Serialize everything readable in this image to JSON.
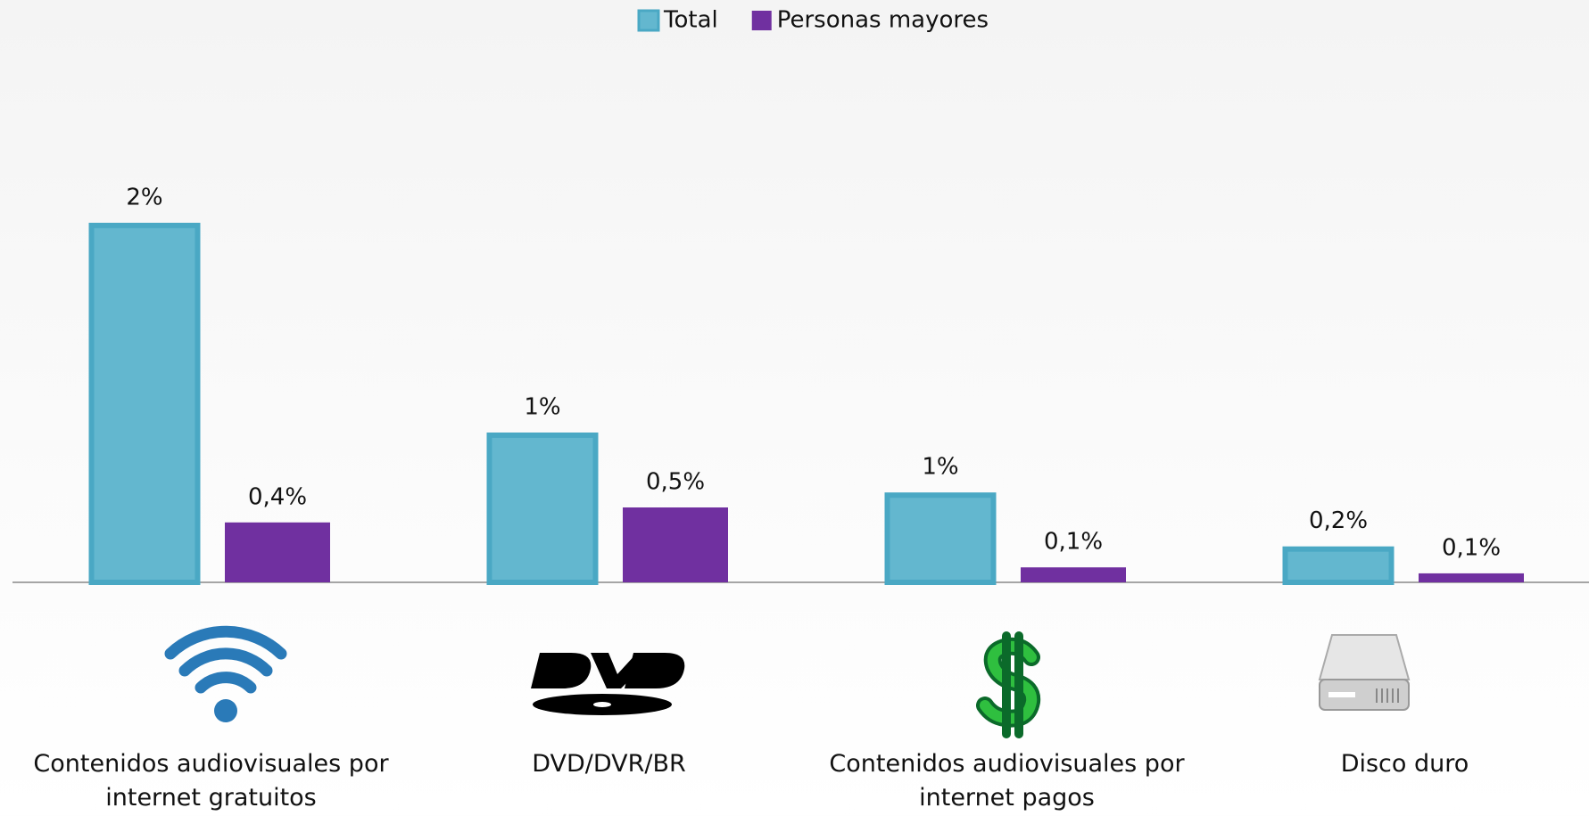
{
  "chart_data": {
    "type": "bar",
    "categories": [
      "Contenidos audiovisuales por internet gratuitos",
      "DVD/DVR/BR",
      "Contenidos audiovisuales por internet pagos",
      "Disco duro"
    ],
    "series": [
      {
        "name": "Total",
        "color": "#63b7cf",
        "values": [
          2.4,
          1,
          0.6,
          0.24
        ],
        "value_labels": [
          "2%",
          "1%",
          "1%",
          "0,2%"
        ]
      },
      {
        "name": "Personas mayores",
        "color": "#7030a0",
        "values": [
          0.4,
          0.5,
          0.1,
          0.06
        ],
        "value_labels": [
          "0,4%",
          "0,5%",
          "0,1%",
          "0,1%"
        ]
      }
    ],
    "legend": "top"
  }
}
